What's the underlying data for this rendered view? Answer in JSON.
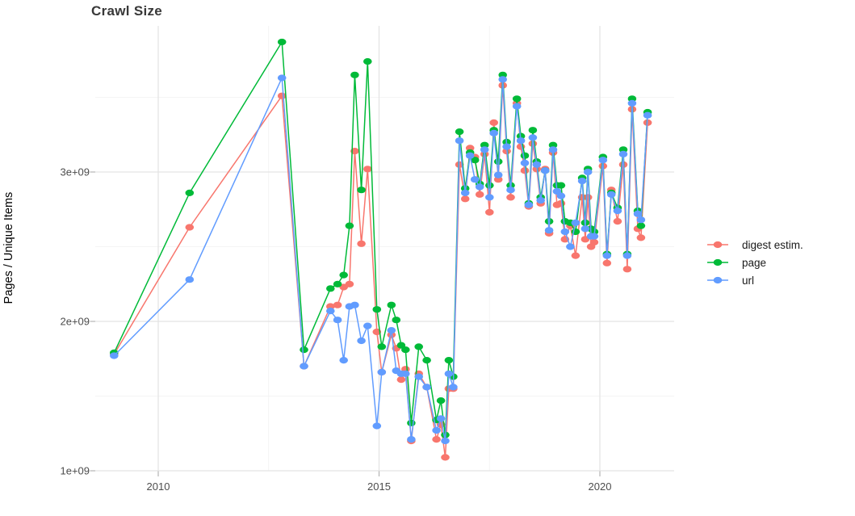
{
  "chart_data": {
    "type": "line",
    "title": "Crawl Size",
    "xlabel": "",
    "ylabel": "Pages / Unique Items",
    "legend_position": "right",
    "grid": true,
    "background_color": "#ffffff",
    "major_grid_color": "#e3e3e3",
    "minor_grid_color": "#f0f0f0",
    "tick_color": "#b3b3b3",
    "tick_label_color": "#4d4d4d",
    "title_color": "#383838",
    "x_ticks": [
      "2010",
      "2015",
      "2020"
    ],
    "x_tick_years": [
      2010,
      2015,
      2020
    ],
    "x_minor_years": [
      2012.5,
      2017.5
    ],
    "y_ticks": [
      "1e+09",
      "2e+09",
      "3e+09"
    ],
    "y_tick_values_e9": [
      1,
      2,
      3
    ],
    "y_minor_values_e9": [
      1.5,
      2.5,
      3.5
    ],
    "value_unit": 1000000000.0,
    "xlim": [
      2008.57,
      2021.68
    ],
    "ylim_e9": [
      1.0,
      3.98
    ],
    "x": [
      2009.0,
      2010.71,
      2012.8,
      2013.3,
      2013.9,
      2014.06,
      2014.2,
      2014.33,
      2014.45,
      2014.6,
      2014.74,
      2014.95,
      2015.06,
      2015.28,
      2015.39,
      2015.5,
      2015.6,
      2015.73,
      2015.9,
      2016.08,
      2016.3,
      2016.4,
      2016.5,
      2016.58,
      2016.68,
      2016.82,
      2016.95,
      2017.06,
      2017.17,
      2017.28,
      2017.39,
      2017.5,
      2017.6,
      2017.7,
      2017.8,
      2017.89,
      2017.98,
      2018.12,
      2018.21,
      2018.3,
      2018.39,
      2018.48,
      2018.57,
      2018.66,
      2018.76,
      2018.85,
      2018.94,
      2019.03,
      2019.12,
      2019.21,
      2019.33,
      2019.45,
      2019.6,
      2019.67,
      2019.73,
      2019.8,
      2019.87,
      2020.07,
      2020.16,
      2020.26,
      2020.4,
      2020.53,
      2020.62,
      2020.73,
      2020.86,
      2020.93,
      2021.08
    ],
    "series": [
      {
        "name": "digest estim.",
        "color": "#F8766D",
        "values_e9": [
          1.78,
          2.63,
          3.51,
          1.7,
          2.1,
          2.11,
          2.23,
          2.25,
          3.14,
          2.52,
          3.02,
          1.93,
          1.66,
          1.91,
          1.82,
          1.61,
          1.68,
          1.2,
          1.65,
          1.56,
          1.21,
          1.31,
          1.09,
          1.55,
          1.55,
          3.05,
          2.82,
          3.16,
          3.1,
          2.85,
          3.12,
          2.73,
          3.33,
          2.95,
          3.58,
          3.14,
          2.83,
          3.46,
          3.17,
          3.01,
          2.77,
          3.19,
          3.02,
          2.79,
          3.02,
          2.59,
          3.13,
          2.78,
          2.79,
          2.55,
          2.64,
          2.44,
          2.83,
          2.55,
          2.83,
          2.5,
          2.53,
          3.04,
          2.39,
          2.88,
          2.67,
          3.05,
          2.35,
          3.42,
          2.62,
          2.56,
          3.33
        ]
      },
      {
        "name": "page",
        "color": "#00BA38",
        "values_e9": [
          1.79,
          2.86,
          3.87,
          1.81,
          2.22,
          2.25,
          2.31,
          2.64,
          3.65,
          2.88,
          3.74,
          2.08,
          1.83,
          2.11,
          2.01,
          1.84,
          1.81,
          1.32,
          1.83,
          1.74,
          1.34,
          1.47,
          1.24,
          1.74,
          1.63,
          3.27,
          2.89,
          3.13,
          3.08,
          2.92,
          3.18,
          2.91,
          3.28,
          3.07,
          3.65,
          3.2,
          2.91,
          3.49,
          3.24,
          3.11,
          2.79,
          3.28,
          3.07,
          2.83,
          3.01,
          2.67,
          3.18,
          2.91,
          2.91,
          2.67,
          2.66,
          2.6,
          2.96,
          2.66,
          3.02,
          2.62,
          2.6,
          3.1,
          2.45,
          2.86,
          2.76,
          3.15,
          2.45,
          3.49,
          2.74,
          2.64,
          3.4
        ]
      },
      {
        "name": "url",
        "color": "#619CFF",
        "values_e9": [
          1.77,
          2.28,
          3.63,
          1.7,
          2.07,
          2.01,
          1.74,
          2.1,
          2.11,
          1.87,
          1.97,
          1.3,
          1.66,
          1.94,
          1.67,
          1.65,
          1.65,
          1.21,
          1.63,
          1.56,
          1.27,
          1.35,
          1.2,
          1.65,
          1.56,
          3.21,
          2.86,
          3.11,
          2.95,
          2.9,
          3.15,
          2.83,
          3.26,
          2.98,
          3.62,
          3.17,
          2.88,
          3.44,
          3.21,
          3.06,
          2.78,
          3.23,
          3.05,
          2.81,
          3.01,
          2.61,
          3.15,
          2.87,
          2.84,
          2.6,
          2.5,
          2.66,
          2.94,
          2.62,
          3.0,
          2.57,
          2.57,
          3.08,
          2.44,
          2.85,
          2.74,
          3.12,
          2.44,
          3.46,
          2.72,
          2.68,
          3.38
        ]
      }
    ]
  }
}
